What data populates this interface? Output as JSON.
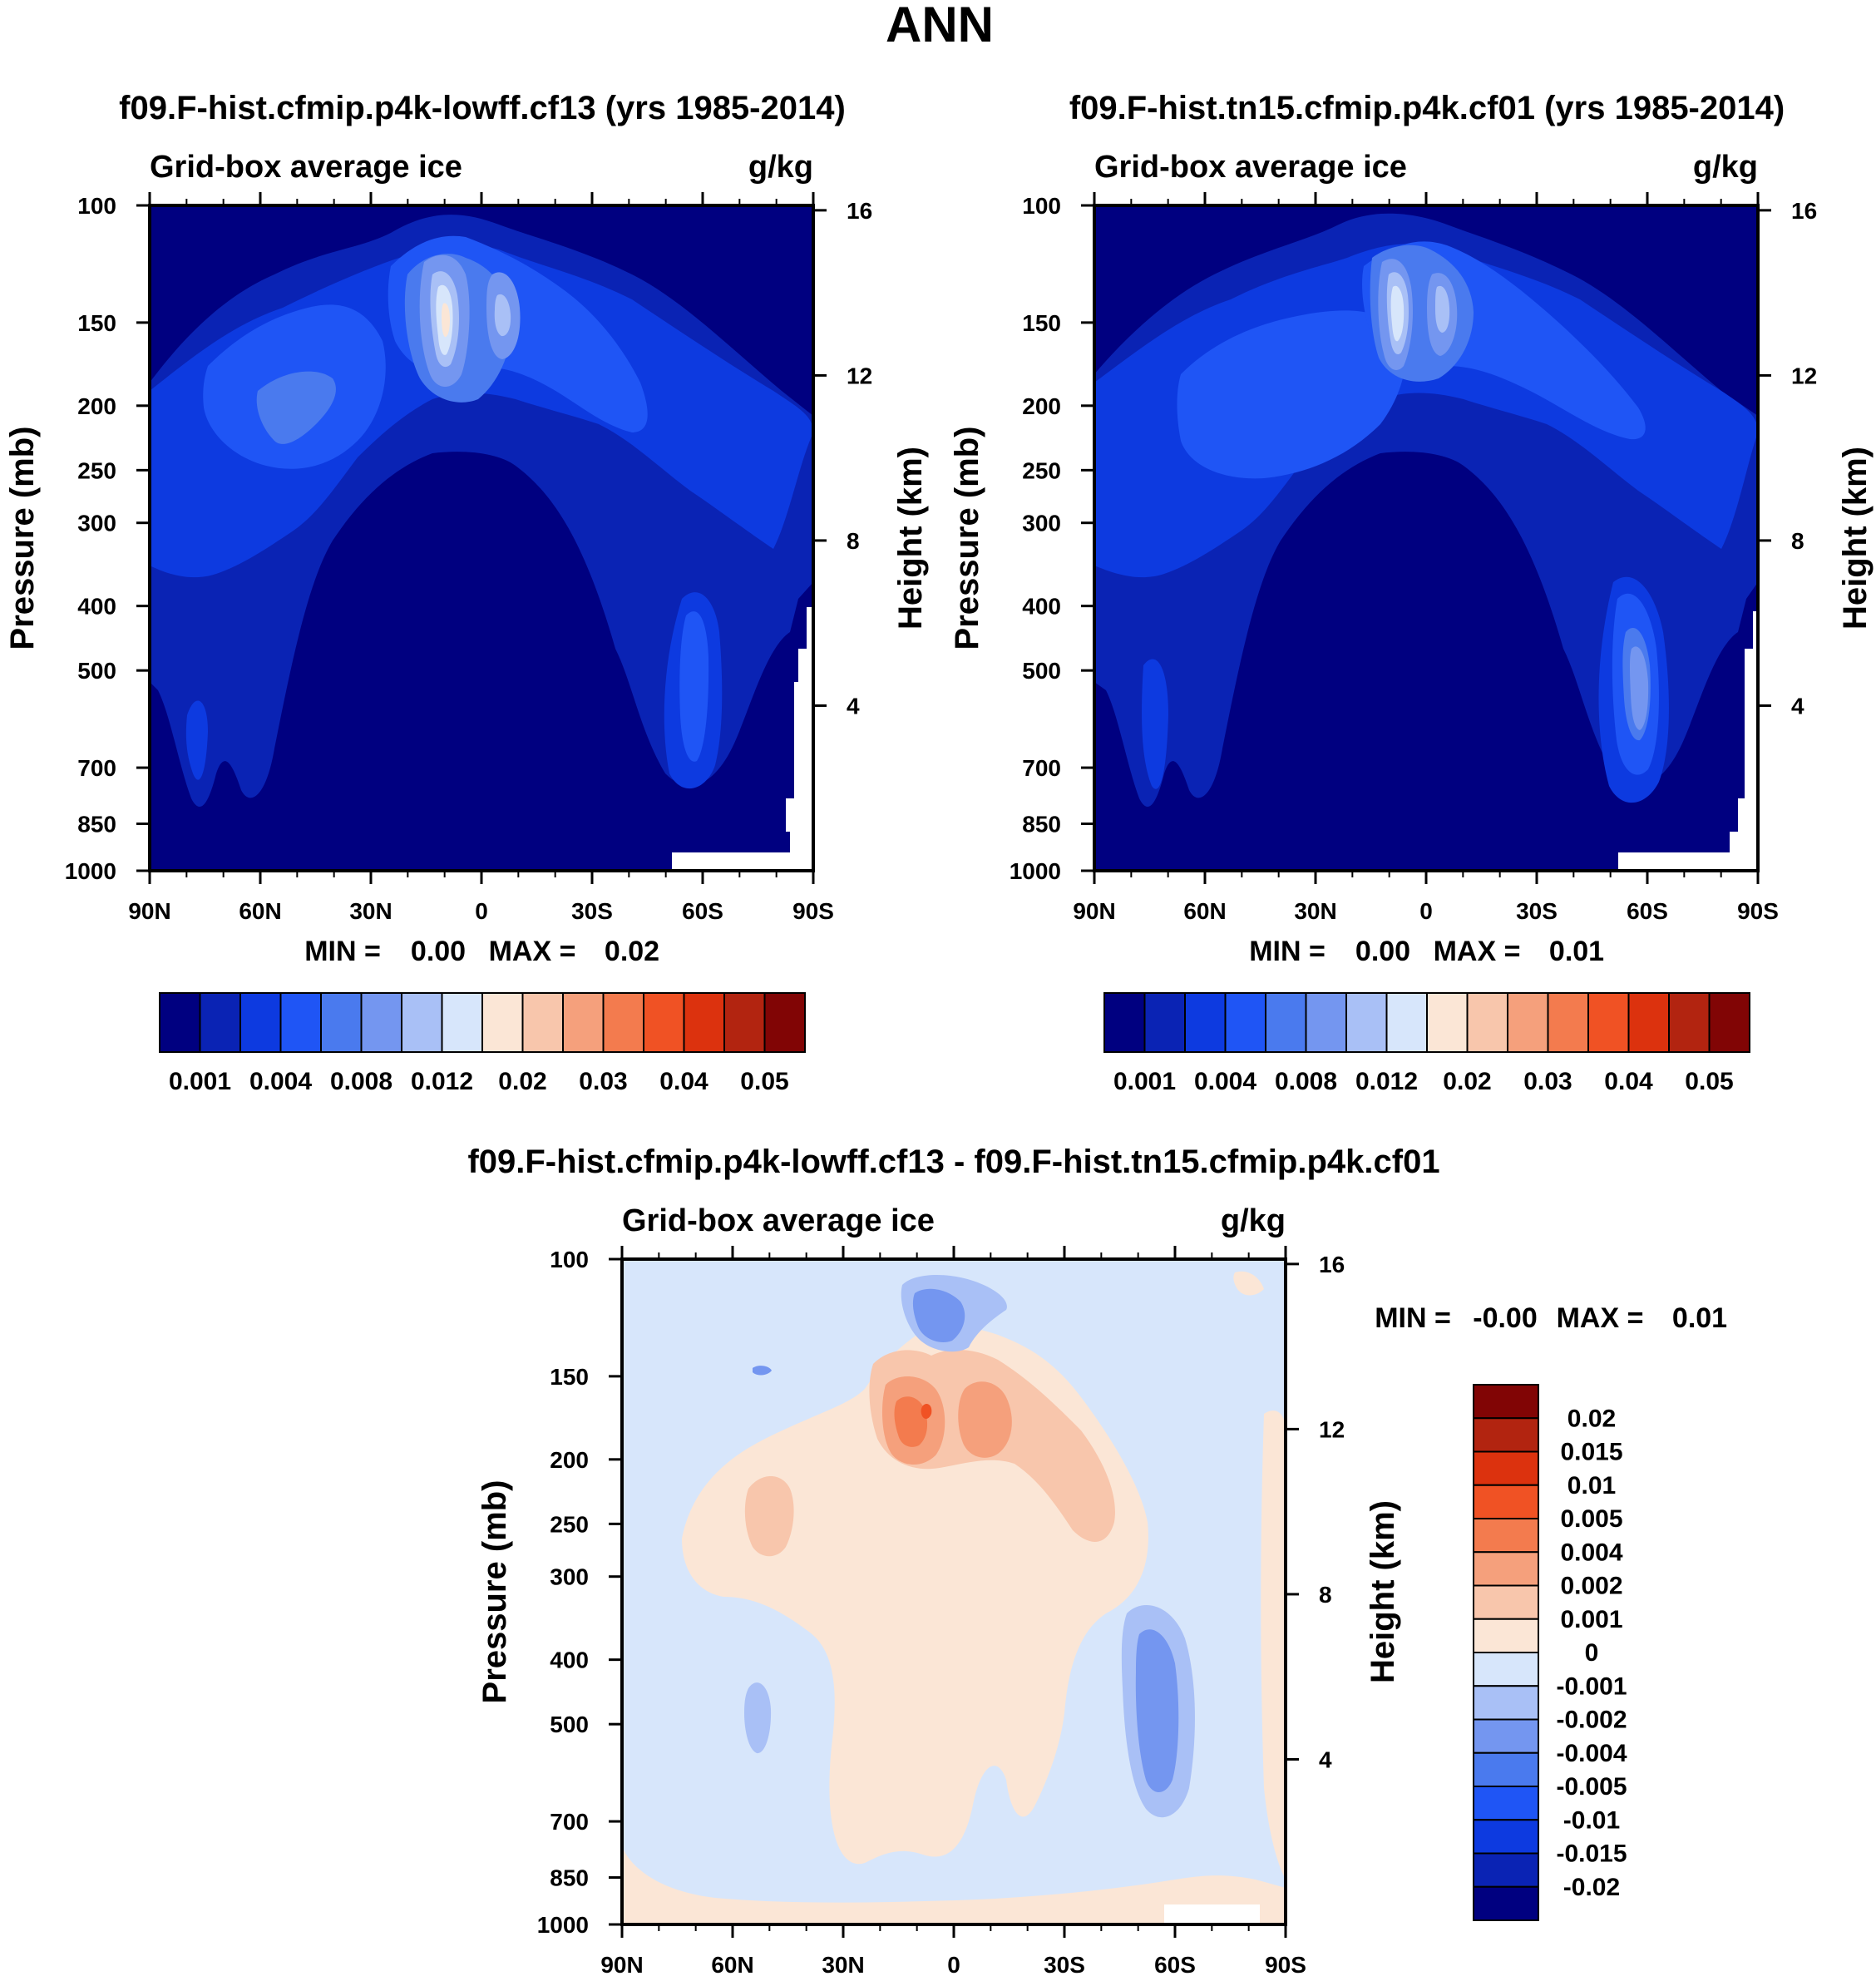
{
  "page": {
    "title": "ANN"
  },
  "panels": [
    {
      "id": "test",
      "title": "f09.F-hist.cfmip.p4k-lowff.cf13 (yrs 1985-2014)",
      "variable": "Grid-box average ice",
      "units": "g/kg",
      "ylabel": "Pressure (mb)",
      "ylabel_right": "Height (km)",
      "stats": {
        "min_label": "MIN =",
        "min": "0.00",
        "max_label": "MAX =",
        "max": "0.02"
      }
    },
    {
      "id": "ref",
      "title": "f09.F-hist.tn15.cfmip.p4k.cf01 (yrs 1985-2014)",
      "variable": "Grid-box average ice",
      "units": "g/kg",
      "ylabel": "Pressure (mb)",
      "ylabel_right": "Height (km)",
      "stats": {
        "min_label": "MIN =",
        "min": "0.00",
        "max_label": "MAX =",
        "max": "0.01"
      }
    },
    {
      "id": "diff",
      "title": "f09.F-hist.cfmip.p4k-lowff.cf13 - f09.F-hist.tn15.cfmip.p4k.cf01",
      "variable": "Grid-box average ice",
      "units": "g/kg",
      "ylabel": "Pressure (mb)",
      "ylabel_right": "Height (km)",
      "stats": {
        "min_label": "MIN =",
        "min": "-0.00",
        "max_label": "MAX =",
        "max": "0.01"
      }
    }
  ],
  "chart_data": {
    "type": "heatmap",
    "x_ticks": [
      "90N",
      "60N",
      "30N",
      "0",
      "30S",
      "60S",
      "90S"
    ],
    "x_values": [
      90,
      60,
      30,
      0,
      -30,
      -60,
      -90
    ],
    "y_ticks": [
      "100",
      "150",
      "200",
      "250",
      "300",
      "400",
      "500",
      "700",
      "850",
      "1000"
    ],
    "y_values": [
      100,
      150,
      200,
      250,
      300,
      400,
      500,
      700,
      850,
      1000
    ],
    "y_scale": "log",
    "height_ticks": [
      "16",
      "12",
      "8",
      "4"
    ],
    "height_values": [
      16,
      12,
      8,
      4
    ],
    "colorbar_abs": {
      "colors": [
        "#000080",
        "#0a23b4",
        "#0d3ae0",
        "#1f55f5",
        "#4a7aee",
        "#7496f0",
        "#a9c0f6",
        "#d7e6fb",
        "#fbe6d6",
        "#f8c6ac",
        "#f5a07c",
        "#f37b4e",
        "#f05224",
        "#dc320e",
        "#b22410",
        "#810505"
      ],
      "labels": [
        "0.001",
        "0.004",
        "0.008",
        "0.012",
        "0.02",
        "0.03",
        "0.04",
        "0.05"
      ]
    },
    "colorbar_diff": {
      "colors": [
        "#810505",
        "#b22410",
        "#dc320e",
        "#f05224",
        "#f37b4e",
        "#f5a07c",
        "#f8c6ac",
        "#fbe6d6",
        "#d7e6fb",
        "#a9c0f6",
        "#7496f0",
        "#4a7aee",
        "#1f55f5",
        "#0d3ae0",
        "#0a23b4",
        "#000080"
      ],
      "labels": [
        "0.02",
        "0.015",
        "0.01",
        "0.005",
        "0.004",
        "0.002",
        "0.001",
        "0",
        "-0.001",
        "-0.002",
        "-0.004",
        "-0.005",
        "-0.01",
        "-0.015",
        "-0.02"
      ]
    }
  }
}
